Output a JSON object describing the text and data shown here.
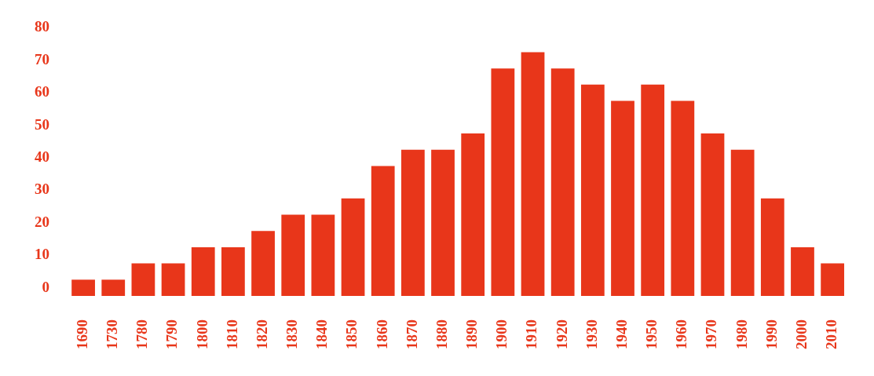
{
  "chart_data": {
    "type": "bar",
    "categories": [
      "1690",
      "1730",
      "1780",
      "1790",
      "1800",
      "1810",
      "1820",
      "1830",
      "1840",
      "1850",
      "1860",
      "1870",
      "1880",
      "1890",
      "1900",
      "1910",
      "1920",
      "1930",
      "1940",
      "1950",
      "1960",
      "1970",
      "1980",
      "1990",
      "2000",
      "2010"
    ],
    "values": [
      5,
      5,
      10,
      10,
      15,
      15,
      20,
      25,
      25,
      30,
      40,
      45,
      45,
      50,
      70,
      75,
      70,
      65,
      60,
      65,
      60,
      50,
      45,
      30,
      15,
      10
    ],
    "base": [
      -2.5,
      -2.5,
      -2.5,
      -2.5,
      -2.5,
      -2.5,
      -2.5,
      -2.5,
      -2.5,
      -2.5,
      -2.5,
      -2.5,
      -2.5,
      -2.5,
      -2.5,
      -2.5,
      -2.5,
      -2.5,
      -2.5,
      -2.5,
      -2.5,
      -2.5,
      -2.5,
      -2.5,
      -2.5,
      -2.5
    ],
    "color": "#e8361a",
    "ylim": [
      -2.5,
      80
    ],
    "yticks": [
      0,
      10,
      20,
      30,
      40,
      50,
      60,
      70,
      80
    ],
    "grid": false,
    "legend": false
  }
}
